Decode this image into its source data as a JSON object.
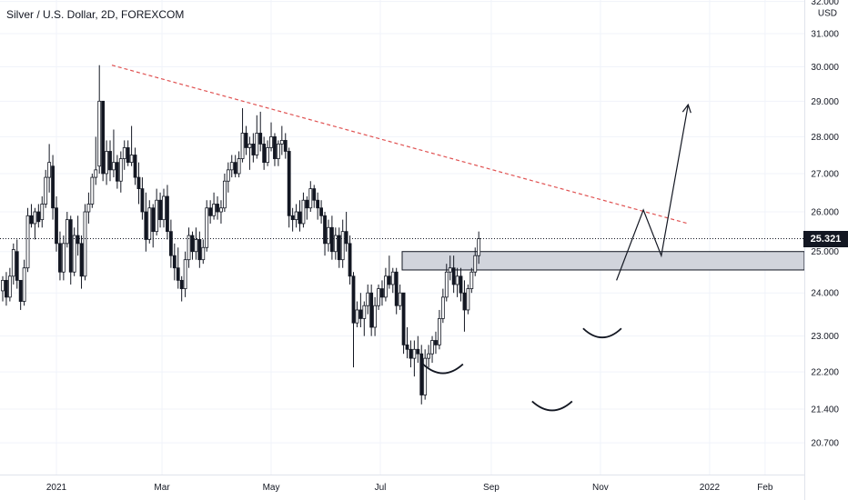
{
  "header": {
    "title": "Silver / U.S. Dollar, 2D, FOREXCOM"
  },
  "chart_data": {
    "type": "candlestick",
    "title": "Silver / U.S. Dollar, 2D, FOREXCOM",
    "y_axis": {
      "unit": "USD",
      "ticks": [
        "32.000",
        "31.000",
        "30.000",
        "29.000",
        "28.000",
        "27.000",
        "26.000",
        "25.000",
        "24.000",
        "23.000",
        "22.200",
        "21.400",
        "20.700"
      ],
      "range": [
        20.3,
        32.1
      ],
      "scale": "log"
    },
    "x_axis": {
      "ticks": [
        "2021",
        "Mar",
        "May",
        "Jul",
        "Sep",
        "Nov",
        "2022",
        "Feb"
      ]
    },
    "current_price": {
      "label": "25.321",
      "value": 25.321
    },
    "grid": true,
    "colors": {
      "up": "#26a69a",
      "down": "#ef5350",
      "trendline": "#e05252",
      "neutral": "#131722",
      "zone": "#bdbdbd"
    },
    "annotations": {
      "resistance_zone": {
        "low": 24.55,
        "high": 25.0
      },
      "downtrend_line": [
        [
          "2021-02-01",
          30.05
        ],
        [
          "2021-12-20",
          25.7
        ]
      ],
      "projection_path": [
        [
          "2021-11-10",
          24.3
        ],
        [
          "2021-11-25",
          26.05
        ],
        [
          "2021-12-05",
          24.9
        ],
        [
          "2021-12-20",
          28.9
        ]
      ],
      "head_and_shoulders": [
        "left-shoulder",
        "head",
        "right-shoulder"
      ]
    },
    "candles": [
      [
        24.05,
        24.4,
        23.8,
        24.3
      ],
      [
        24.3,
        24.5,
        23.7,
        23.9
      ],
      [
        23.9,
        24.6,
        23.8,
        24.4
      ],
      [
        24.4,
        25.2,
        24.2,
        25.05
      ],
      [
        25.0,
        25.3,
        24.1,
        24.3
      ],
      [
        24.3,
        24.3,
        23.6,
        23.8
      ],
      [
        23.8,
        24.8,
        23.7,
        24.6
      ],
      [
        24.6,
        26.1,
        24.5,
        25.9
      ],
      [
        25.9,
        26.2,
        25.6,
        25.7
      ],
      [
        25.7,
        26.1,
        25.3,
        26.0
      ],
      [
        26.0,
        26.2,
        25.6,
        25.75
      ],
      [
        25.8,
        26.4,
        25.6,
        26.2
      ],
      [
        26.2,
        27.1,
        26.1,
        26.9
      ],
      [
        26.9,
        27.8,
        26.5,
        27.3
      ],
      [
        27.2,
        27.5,
        25.8,
        26.1
      ],
      [
        26.1,
        26.4,
        25.0,
        25.2
      ],
      [
        25.2,
        25.5,
        24.3,
        24.5
      ],
      [
        24.5,
        25.4,
        24.3,
        25.2
      ],
      [
        25.2,
        26.0,
        25.1,
        25.8
      ],
      [
        25.8,
        25.9,
        24.2,
        24.5
      ],
      [
        24.5,
        25.6,
        24.4,
        25.4
      ],
      [
        25.4,
        25.9,
        24.9,
        25.2
      ],
      [
        25.2,
        25.4,
        24.1,
        24.4
      ],
      [
        24.4,
        26.2,
        24.3,
        26.0
      ],
      [
        26.0,
        26.5,
        25.7,
        26.2
      ],
      [
        26.2,
        27.0,
        26.1,
        26.9
      ],
      [
        26.9,
        28.0,
        26.7,
        27.1
      ],
      [
        27.2,
        30.05,
        27.0,
        29.0
      ],
      [
        29.0,
        29.0,
        26.8,
        27.0
      ],
      [
        27.0,
        27.9,
        26.7,
        27.6
      ],
      [
        27.6,
        27.9,
        26.8,
        27.1
      ],
      [
        27.1,
        28.2,
        26.9,
        27.3
      ],
      [
        27.3,
        27.5,
        26.6,
        26.8
      ],
      [
        26.8,
        27.6,
        26.5,
        27.4
      ],
      [
        27.4,
        27.9,
        27.1,
        27.7
      ],
      [
        27.7,
        27.9,
        27.2,
        27.3
      ],
      [
        27.3,
        28.3,
        27.2,
        27.5
      ],
      [
        27.5,
        27.7,
        26.7,
        26.9
      ],
      [
        26.9,
        27.3,
        26.2,
        26.6
      ],
      [
        26.6,
        26.9,
        25.8,
        26.0
      ],
      [
        26.0,
        26.5,
        25.0,
        25.3
      ],
      [
        25.3,
        26.3,
        25.2,
        26.1
      ],
      [
        26.1,
        26.2,
        25.1,
        25.5
      ],
      [
        25.5,
        26.6,
        25.4,
        26.3
      ],
      [
        26.3,
        26.5,
        25.6,
        25.8
      ],
      [
        25.8,
        26.6,
        25.6,
        26.4
      ],
      [
        26.4,
        26.7,
        25.3,
        25.5
      ],
      [
        25.5,
        25.8,
        24.6,
        24.9
      ],
      [
        24.9,
        25.2,
        24.3,
        24.6
      ],
      [
        24.6,
        25.1,
        24.1,
        24.3
      ],
      [
        24.3,
        24.4,
        23.8,
        24.1
      ],
      [
        24.1,
        25.0,
        23.9,
        24.8
      ],
      [
        24.8,
        25.6,
        24.6,
        25.4
      ],
      [
        25.4,
        25.5,
        24.8,
        25.0
      ],
      [
        25.0,
        25.6,
        24.8,
        25.3
      ],
      [
        25.3,
        25.5,
        24.6,
        24.8
      ],
      [
        24.8,
        25.3,
        24.7,
        25.1
      ],
      [
        25.1,
        26.3,
        25.0,
        26.1
      ],
      [
        26.1,
        26.3,
        25.7,
        25.9
      ],
      [
        25.9,
        26.5,
        25.8,
        26.2
      ],
      [
        26.2,
        26.4,
        25.8,
        26.0
      ],
      [
        26.0,
        26.3,
        25.7,
        26.1
      ],
      [
        26.1,
        27.0,
        26.0,
        26.8
      ],
      [
        26.8,
        27.3,
        26.5,
        27.1
      ],
      [
        27.1,
        27.5,
        26.9,
        27.3
      ],
      [
        27.3,
        27.5,
        26.9,
        27.0
      ],
      [
        27.0,
        27.6,
        26.9,
        27.4
      ],
      [
        27.4,
        28.8,
        27.3,
        28.1
      ],
      [
        28.1,
        28.3,
        27.5,
        27.7
      ],
      [
        27.7,
        28.0,
        27.1,
        27.8
      ],
      [
        27.8,
        28.1,
        27.3,
        27.5
      ],
      [
        27.5,
        28.6,
        27.4,
        28.1
      ],
      [
        28.1,
        28.7,
        27.6,
        27.8
      ],
      [
        27.8,
        28.0,
        27.1,
        27.3
      ],
      [
        27.3,
        27.9,
        27.2,
        27.7
      ],
      [
        27.7,
        28.4,
        27.6,
        28.0
      ],
      [
        28.0,
        28.1,
        27.2,
        27.4
      ],
      [
        27.4,
        27.9,
        27.2,
        27.8
      ],
      [
        27.8,
        28.3,
        27.5,
        27.9
      ],
      [
        27.9,
        28.1,
        27.4,
        27.6
      ],
      [
        27.6,
        27.7,
        25.6,
        25.9
      ],
      [
        25.9,
        26.1,
        25.5,
        25.8
      ],
      [
        25.8,
        26.2,
        25.6,
        26.0
      ],
      [
        26.0,
        26.3,
        25.5,
        25.7
      ],
      [
        25.7,
        26.5,
        25.6,
        26.3
      ],
      [
        26.3,
        26.4,
        25.8,
        26.1
      ],
      [
        26.1,
        26.8,
        26.0,
        26.6
      ],
      [
        26.6,
        26.7,
        26.1,
        26.3
      ],
      [
        26.3,
        26.5,
        25.8,
        26.1
      ],
      [
        26.1,
        26.3,
        25.7,
        25.9
      ],
      [
        25.9,
        26.0,
        24.9,
        25.2
      ],
      [
        25.2,
        25.8,
        25.0,
        25.6
      ],
      [
        25.6,
        25.9,
        24.8,
        25.0
      ],
      [
        25.0,
        25.6,
        24.8,
        25.4
      ],
      [
        25.4,
        25.6,
        24.6,
        24.8
      ],
      [
        24.8,
        25.8,
        24.6,
        25.5
      ],
      [
        25.5,
        26.0,
        25.0,
        25.2
      ],
      [
        25.2,
        25.4,
        24.2,
        24.4
      ],
      [
        24.4,
        24.5,
        22.3,
        23.3
      ],
      [
        23.3,
        23.8,
        23.2,
        23.6
      ],
      [
        23.6,
        24.0,
        23.2,
        23.4
      ],
      [
        23.4,
        23.8,
        23.0,
        23.7
      ],
      [
        23.7,
        24.2,
        23.5,
        24.0
      ],
      [
        24.0,
        24.2,
        23.0,
        23.2
      ],
      [
        23.2,
        23.9,
        23.0,
        23.7
      ],
      [
        23.7,
        24.2,
        23.6,
        24.1
      ],
      [
        24.1,
        24.3,
        23.7,
        23.9
      ],
      [
        23.9,
        24.6,
        23.8,
        24.4
      ],
      [
        24.4,
        24.9,
        24.1,
        24.2
      ],
      [
        24.2,
        24.6,
        24.0,
        24.5
      ],
      [
        24.5,
        24.6,
        23.5,
        23.7
      ],
      [
        23.7,
        24.2,
        23.6,
        24.0
      ],
      [
        24.0,
        24.0,
        22.6,
        22.8
      ],
      [
        22.8,
        23.2,
        22.5,
        22.7
      ],
      [
        22.7,
        22.9,
        22.3,
        22.5
      ],
      [
        22.5,
        22.9,
        22.1,
        22.7
      ],
      [
        22.7,
        23.0,
        22.4,
        22.6
      ],
      [
        22.6,
        22.8,
        21.5,
        21.7
      ],
      [
        21.7,
        22.7,
        21.6,
        22.5
      ],
      [
        22.5,
        22.8,
        22.3,
        22.6
      ],
      [
        22.6,
        23.0,
        22.4,
        22.9
      ],
      [
        22.9,
        23.1,
        22.6,
        22.8
      ],
      [
        22.8,
        23.6,
        22.7,
        23.4
      ],
      [
        23.4,
        24.1,
        23.3,
        23.9
      ],
      [
        23.9,
        24.7,
        23.8,
        24.5
      ],
      [
        24.5,
        24.9,
        24.3,
        24.6
      ],
      [
        24.6,
        24.9,
        24.0,
        24.2
      ],
      [
        24.2,
        24.6,
        23.9,
        24.4
      ],
      [
        24.4,
        24.6,
        23.8,
        24.0
      ],
      [
        24.0,
        24.3,
        23.1,
        23.6
      ],
      [
        23.6,
        24.2,
        23.5,
        24.1
      ],
      [
        24.1,
        24.6,
        24.0,
        24.5
      ],
      [
        24.5,
        25.1,
        24.4,
        24.9
      ],
      [
        24.9,
        25.5,
        24.7,
        25.321
      ]
    ]
  }
}
